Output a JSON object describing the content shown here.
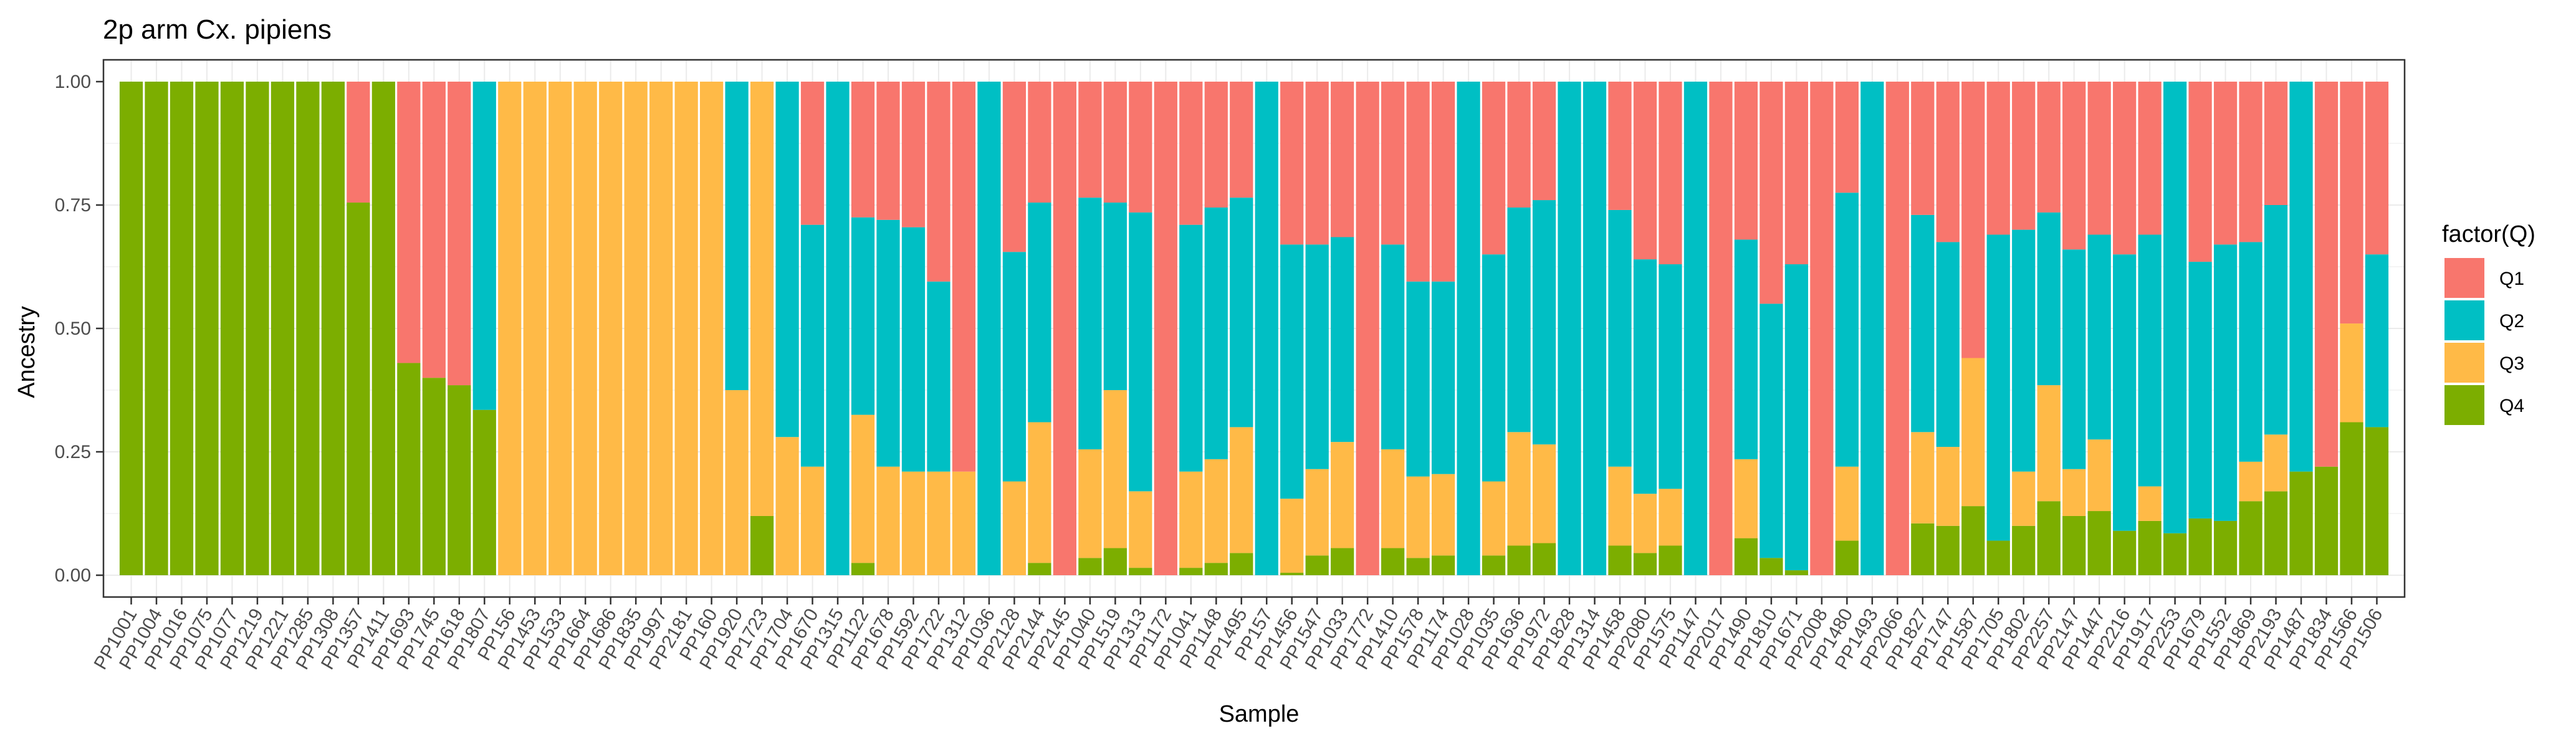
{
  "chart_data": {
    "type": "bar",
    "stacked": true,
    "title": "2p arm Cx. pipiens",
    "xlabel": "Sample",
    "ylabel": "Ancestry",
    "ylim": [
      0,
      1
    ],
    "yticks": [
      "0.00",
      "0.25",
      "0.50",
      "0.75",
      "1.00"
    ],
    "grid": true,
    "legend": {
      "title": "factor(Q)",
      "position": "right"
    },
    "series_colors": {
      "Q1": "#F8766D",
      "Q2": "#00BFC4",
      "Q3": "#FFBA47",
      "Q4": "#7CAE00"
    },
    "categories": [
      "PP1001",
      "PP1004",
      "PP1016",
      "PP1075",
      "PP1077",
      "PP1219",
      "PP1221",
      "PP1285",
      "PP1308",
      "PP1357",
      "PP1411",
      "PP1693",
      "PP1745",
      "PP1618",
      "PP1807",
      "PP156",
      "PP1453",
      "PP1533",
      "PP1664",
      "PP1686",
      "PP1835",
      "PP1997",
      "PP2181",
      "PP160",
      "PP1920",
      "PP1723",
      "PP1704",
      "PP1670",
      "PP1315",
      "PP1122",
      "PP1678",
      "PP1592",
      "PP1722",
      "PP1312",
      "PP1036",
      "PP2128",
      "PP2144",
      "PP2145",
      "PP1040",
      "PP1519",
      "PP1313",
      "PP1172",
      "PP1041",
      "PP1148",
      "PP1495",
      "PP157",
      "PP1456",
      "PP1547",
      "PP1033",
      "PP1772",
      "PP1410",
      "PP1578",
      "PP1174",
      "PP1028",
      "PP1035",
      "PP1636",
      "PP1972",
      "PP1828",
      "PP1314",
      "PP1458",
      "PP2080",
      "PP1575",
      "PP1147",
      "PP2017",
      "PP1490",
      "PP1810",
      "PP1671",
      "PP2008",
      "PP1480",
      "PP1493",
      "PP2066",
      "PP1827",
      "PP1747",
      "PP1587",
      "PP1705",
      "PP1802",
      "PP2257",
      "PP2147",
      "PP1447",
      "PP2216",
      "PP1917",
      "PP2253",
      "PP1679",
      "PP1552",
      "PP1869",
      "PP2193",
      "PP1487",
      "PP1834",
      "PP1566",
      "PP1506"
    ],
    "series": [
      {
        "name": "Q4",
        "values": [
          1,
          1,
          1,
          1,
          1,
          1,
          1,
          1,
          1,
          0.755,
          1,
          0.43,
          0.4,
          0.385,
          0.335,
          0,
          0,
          0,
          0,
          0,
          0,
          0,
          0,
          0,
          0,
          0.12,
          0,
          0,
          0,
          0.025,
          0,
          0,
          0,
          0,
          0,
          0,
          0.025,
          0,
          0.035,
          0.055,
          0.015,
          0,
          0.015,
          0.025,
          0.045,
          0,
          0.005,
          0.04,
          0.055,
          0,
          0.055,
          0.035,
          0.04,
          0,
          0.04,
          0.06,
          0.065,
          0,
          0,
          0.06,
          0.045,
          0.06,
          0,
          0,
          0.075,
          0.035,
          0.01,
          0,
          0.07,
          0,
          0,
          0.105,
          0.1,
          0.14,
          0.07,
          0.1,
          0.15,
          0.12,
          0.13,
          0.09,
          0.11,
          0.085,
          0.115,
          0.11,
          0.15,
          0.17,
          0.21,
          0.22,
          0.31,
          0.3
        ]
      },
      {
        "name": "Q3",
        "values": [
          0,
          0,
          0,
          0,
          0,
          0,
          0,
          0,
          0,
          0,
          0,
          0,
          0,
          0,
          0,
          1,
          1,
          1,
          1,
          1,
          1,
          1,
          1,
          1,
          0.375,
          0.88,
          0.28,
          0.22,
          0,
          0.3,
          0.22,
          0.21,
          0.21,
          0.21,
          0,
          0.19,
          0.285,
          0,
          0.22,
          0.32,
          0.155,
          0,
          0.195,
          0.21,
          0.255,
          0,
          0.15,
          0.175,
          0.215,
          0,
          0.2,
          0.165,
          0.165,
          0,
          0.15,
          0.23,
          0.2,
          0,
          0,
          0.16,
          0.12,
          0.115,
          0,
          0,
          0.16,
          0,
          0,
          0,
          0.15,
          0,
          0,
          0.185,
          0.16,
          0.3,
          0,
          0.11,
          0.235,
          0.095,
          0.145,
          0,
          0.07,
          0,
          0,
          0,
          0.08,
          0.115,
          0,
          0,
          0.2,
          0
        ]
      },
      {
        "name": "Q2",
        "values": [
          0,
          0,
          0,
          0,
          0,
          0,
          0,
          0,
          0,
          0,
          0,
          0,
          0,
          0,
          0.665,
          0,
          0,
          0,
          0,
          0,
          0,
          0,
          0,
          0,
          0.625,
          0,
          0.72,
          0.49,
          1,
          0.4,
          0.5,
          0.495,
          0.385,
          0,
          1,
          0.465,
          0.445,
          0,
          0.51,
          0.38,
          0.565,
          0,
          0.5,
          0.51,
          0.465,
          1,
          0.515,
          0.455,
          0.415,
          0,
          0.415,
          0.395,
          0.39,
          1,
          0.46,
          0.455,
          0.495,
          1,
          1,
          0.52,
          0.475,
          0.455,
          1,
          0,
          0.445,
          0.515,
          0.62,
          0,
          0.555,
          1,
          0,
          0.44,
          0.415,
          0,
          0.62,
          0.49,
          0.35,
          0.445,
          0.415,
          0.56,
          0.51,
          0.915,
          0.52,
          0.56,
          0.445,
          0.465,
          0.79,
          0,
          0,
          0.35
        ]
      },
      {
        "name": "Q1",
        "values": [
          0,
          0,
          0,
          0,
          0,
          0,
          0,
          0,
          0,
          0.245,
          0,
          0.57,
          0.6,
          0.615,
          0,
          0,
          0,
          0,
          0,
          0,
          0,
          0,
          0,
          0,
          0,
          0,
          0,
          0.29,
          0,
          0.275,
          0.28,
          0.295,
          0.405,
          0.79,
          0,
          0.345,
          0.245,
          1,
          0.235,
          0.245,
          0.265,
          1,
          0.29,
          0.255,
          0.235,
          0,
          0.33,
          0.33,
          0.315,
          1,
          0.33,
          0.405,
          0.405,
          0,
          0.35,
          0.255,
          0.24,
          0,
          0,
          0.26,
          0.36,
          0.37,
          0,
          1,
          0.32,
          0.45,
          0.37,
          1,
          0.225,
          0,
          1,
          0.27,
          0.325,
          0.56,
          0.31,
          0.3,
          0.265,
          0.34,
          0.31,
          0.35,
          0.31,
          0,
          0.365,
          0.33,
          0.325,
          0.25,
          0,
          0.78,
          0.49,
          0.35
        ]
      }
    ]
  }
}
